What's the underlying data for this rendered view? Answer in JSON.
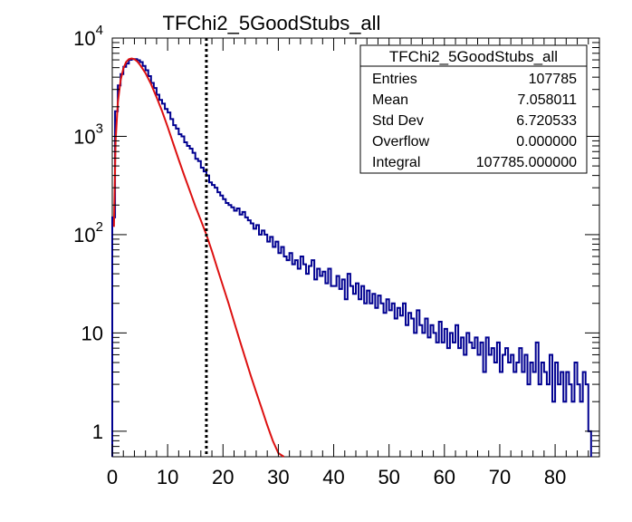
{
  "chart_data": {
    "type": "histogram",
    "title": "TFChi2_5GoodStubs_all",
    "x_range": [
      0,
      88
    ],
    "y_range": [
      0.55,
      10000
    ],
    "y_scale": "log",
    "x_ticks": [
      0,
      10,
      20,
      30,
      40,
      50,
      60,
      70,
      80
    ],
    "x_tick_labels": [
      "0",
      "10",
      "20",
      "30",
      "40",
      "50",
      "60",
      "70",
      "80"
    ],
    "y_ticks": [
      1,
      10,
      100,
      1000,
      10000
    ],
    "y_tick_labels": [
      {
        "base": "1",
        "exp": ""
      },
      {
        "base": "10",
        "exp": ""
      },
      {
        "base": "10",
        "exp": "2"
      },
      {
        "base": "10",
        "exp": "3"
      },
      {
        "base": "10",
        "exp": "4"
      }
    ],
    "histogram": {
      "color": "#000090",
      "bin_width": 0.5,
      "x_start": 0,
      "counts": [
        150,
        1800,
        3300,
        4300,
        5100,
        5500,
        6000,
        6100,
        6100,
        5950,
        5700,
        5200,
        4700,
        4100,
        3500,
        3100,
        2650,
        2350,
        2150,
        1900,
        1750,
        1500,
        1300,
        1200,
        1050,
        1000,
        870,
        800,
        750,
        680,
        590,
        560,
        480,
        440,
        400,
        340,
        320,
        300,
        270,
        250,
        230,
        210,
        200,
        190,
        175,
        185,
        160,
        170,
        150,
        140,
        130,
        115,
        125,
        100,
        110,
        100,
        85,
        95,
        75,
        85,
        65,
        75,
        60,
        55,
        65,
        50,
        55,
        45,
        60,
        50,
        40,
        48,
        55,
        35,
        45,
        38,
        42,
        32,
        45,
        30,
        30,
        38,
        28,
        35,
        22,
        40,
        30,
        25,
        32,
        22,
        30,
        20,
        27,
        20,
        25,
        18,
        24,
        20,
        16,
        22,
        17,
        20,
        14,
        18,
        15,
        20,
        12,
        16,
        14,
        10,
        17,
        12,
        10,
        14,
        9,
        12,
        10,
        8,
        13,
        8,
        11,
        7,
        10,
        8,
        12,
        7,
        9,
        6,
        10,
        8,
        7,
        9,
        6,
        8,
        4,
        9,
        6,
        7,
        5,
        8,
        4,
        6,
        7,
        5,
        6,
        4,
        5,
        7,
        4,
        6,
        3,
        5,
        4,
        8,
        3,
        5,
        4,
        3,
        6,
        2,
        5,
        3,
        4,
        2,
        4,
        3,
        2,
        5,
        3,
        2,
        4,
        3,
        1
      ]
    },
    "fit": {
      "color": "#dd1111",
      "points": [
        [
          0.3,
          120
        ],
        [
          0.6,
          900
        ],
        [
          1,
          2200
        ],
        [
          1.5,
          3700
        ],
        [
          2,
          4900
        ],
        [
          2.5,
          5700
        ],
        [
          3,
          6100
        ],
        [
          3.5,
          6200
        ],
        [
          4,
          6100
        ],
        [
          4.5,
          5800
        ],
        [
          5,
          5350
        ],
        [
          6,
          4400
        ],
        [
          7,
          3400
        ],
        [
          8,
          2500
        ],
        [
          9,
          1800
        ],
        [
          10,
          1250
        ],
        [
          11,
          850
        ],
        [
          12,
          580
        ],
        [
          13,
          400
        ],
        [
          14,
          280
        ],
        [
          15,
          195
        ],
        [
          16,
          140
        ],
        [
          17,
          100
        ],
        [
          18,
          68
        ],
        [
          19,
          45
        ],
        [
          20,
          30
        ],
        [
          21,
          20
        ],
        [
          22,
          13
        ],
        [
          23,
          8.5
        ],
        [
          24,
          5.6
        ],
        [
          25,
          3.7
        ],
        [
          26,
          2.5
        ],
        [
          27,
          1.7
        ],
        [
          28,
          1.15
        ],
        [
          29,
          0.8
        ],
        [
          30,
          0.6
        ],
        [
          31,
          0.45
        ]
      ]
    },
    "cut_line": {
      "x": 17,
      "style": "dotted",
      "color": "#000000"
    },
    "stats_box": {
      "title": "TFChi2_5GoodStubs_all",
      "rows": [
        {
          "label": "Entries",
          "value": "107785"
        },
        {
          "label": "Mean",
          "value": "7.058011"
        },
        {
          "label": "Std Dev",
          "value": "6.720533"
        },
        {
          "label": "Overflow",
          "value": "0.000000"
        },
        {
          "label": "Integral",
          "value": "107785.000000"
        }
      ]
    }
  }
}
